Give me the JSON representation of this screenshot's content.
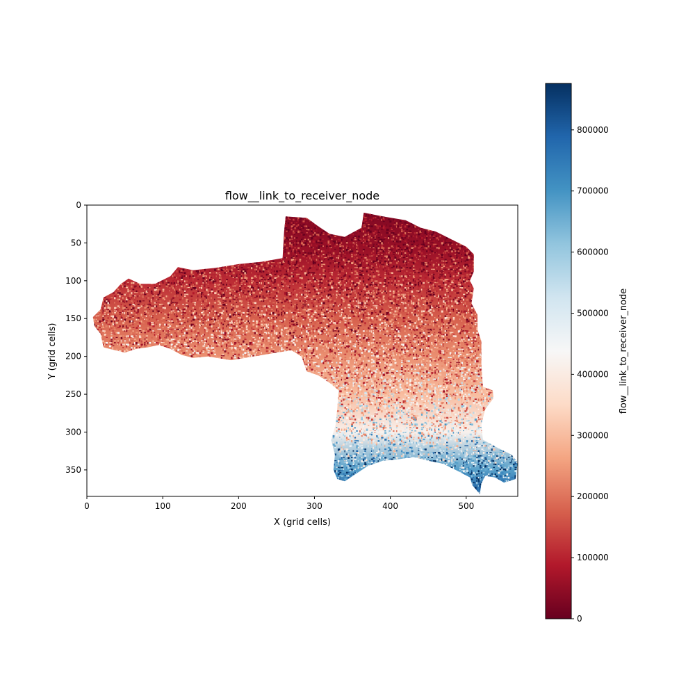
{
  "chart_data": {
    "type": "heatmap",
    "title": "flow__link_to_receiver_node",
    "xlabel": "X (grid cells)",
    "ylabel": "Y (grid cells)",
    "xlim": [
      0,
      568
    ],
    "ylim": [
      385,
      0
    ],
    "x_ticks": [
      0,
      100,
      200,
      300,
      400,
      500
    ],
    "y_ticks": [
      0,
      50,
      100,
      150,
      200,
      250,
      300,
      350
    ],
    "grid": false,
    "colormap": "RdBu",
    "colormap_stops": [
      "#67001f",
      "#b2182b",
      "#d6604d",
      "#f4a582",
      "#fddbc7",
      "#f7f7f7",
      "#d1e5f0",
      "#92c5de",
      "#4393c3",
      "#2166ac",
      "#053061"
    ],
    "colorbar": {
      "label": "flow__link_to_receiver_node",
      "range": [
        0,
        876000
      ],
      "ticks": [
        0,
        100000,
        200000,
        300000,
        400000,
        500000,
        600000,
        700000,
        800000
      ],
      "tick_labels": [
        "0",
        "100000",
        "200000",
        "300000",
        "400000",
        "500000",
        "600000",
        "700000",
        "800000"
      ],
      "position": "right"
    },
    "domain_outline": [
      [
        8,
        148
      ],
      [
        18,
        138
      ],
      [
        22,
        122
      ],
      [
        35,
        115
      ],
      [
        45,
        104
      ],
      [
        55,
        97
      ],
      [
        70,
        104
      ],
      [
        90,
        104
      ],
      [
        110,
        94
      ],
      [
        120,
        82
      ],
      [
        140,
        86
      ],
      [
        170,
        83
      ],
      [
        200,
        78
      ],
      [
        230,
        75
      ],
      [
        258,
        70
      ],
      [
        260,
        35
      ],
      [
        262,
        15
      ],
      [
        290,
        17
      ],
      [
        305,
        28
      ],
      [
        320,
        38
      ],
      [
        340,
        42
      ],
      [
        362,
        30
      ],
      [
        365,
        10
      ],
      [
        390,
        15
      ],
      [
        420,
        20
      ],
      [
        440,
        30
      ],
      [
        460,
        35
      ],
      [
        480,
        45
      ],
      [
        500,
        55
      ],
      [
        510,
        65
      ],
      [
        510,
        88
      ],
      [
        505,
        100
      ],
      [
        510,
        110
      ],
      [
        507,
        130
      ],
      [
        515,
        145
      ],
      [
        515,
        165
      ],
      [
        520,
        180
      ],
      [
        520,
        210
      ],
      [
        522,
        240
      ],
      [
        535,
        245
      ],
      [
        536,
        255
      ],
      [
        525,
        270
      ],
      [
        520,
        290
      ],
      [
        522,
        310
      ],
      [
        540,
        320
      ],
      [
        560,
        330
      ],
      [
        568,
        340
      ],
      [
        565,
        362
      ],
      [
        550,
        367
      ],
      [
        538,
        360
      ],
      [
        525,
        358
      ],
      [
        520,
        368
      ],
      [
        518,
        382
      ],
      [
        508,
        370
      ],
      [
        505,
        360
      ],
      [
        490,
        352
      ],
      [
        470,
        342
      ],
      [
        450,
        338
      ],
      [
        430,
        333
      ],
      [
        410,
        336
      ],
      [
        390,
        338
      ],
      [
        370,
        345
      ],
      [
        355,
        355
      ],
      [
        340,
        365
      ],
      [
        330,
        362
      ],
      [
        325,
        350
      ],
      [
        327,
        330
      ],
      [
        322,
        310
      ],
      [
        328,
        290
      ],
      [
        330,
        270
      ],
      [
        332,
        245
      ],
      [
        320,
        235
      ],
      [
        305,
        225
      ],
      [
        290,
        220
      ],
      [
        283,
        200
      ],
      [
        270,
        192
      ],
      [
        250,
        195
      ],
      [
        220,
        200
      ],
      [
        190,
        205
      ],
      [
        160,
        200
      ],
      [
        140,
        202
      ],
      [
        125,
        198
      ],
      [
        110,
        190
      ],
      [
        95,
        185
      ],
      [
        80,
        188
      ],
      [
        65,
        190
      ],
      [
        50,
        195
      ],
      [
        38,
        192
      ],
      [
        22,
        188
      ],
      [
        18,
        170
      ],
      [
        10,
        160
      ]
    ],
    "row_value_trend": [
      {
        "y": 10,
        "value": 30000
      },
      {
        "y": 60,
        "value": 60000
      },
      {
        "y": 100,
        "value": 110000
      },
      {
        "y": 150,
        "value": 175000
      },
      {
        "y": 200,
        "value": 235000
      },
      {
        "y": 250,
        "value": 300000
      },
      {
        "y": 300,
        "value": 420000
      },
      {
        "y": 350,
        "value": 680000
      },
      {
        "y": 380,
        "value": 800000
      }
    ]
  }
}
